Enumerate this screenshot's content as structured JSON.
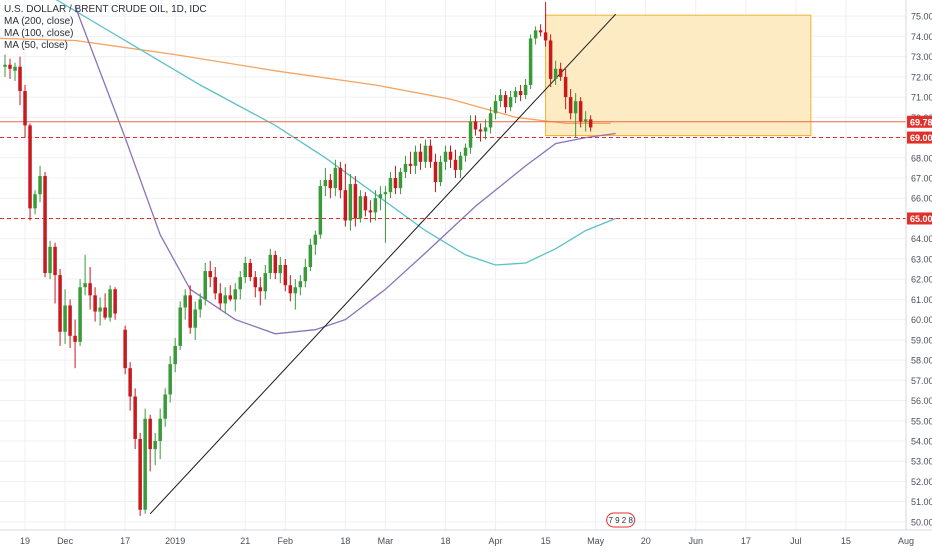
{
  "chart_data": {
    "type": "candlestick",
    "title": "U.S. DOLLAR / BRENT CRUDE OIL, 1D, IDC",
    "legend": [
      "MA (200, close)",
      "MA (100, close)",
      "MA (50, close)"
    ],
    "ylim": [
      49.6,
      75.8
    ],
    "y_ticks": [
      "50.00",
      "51.00",
      "52.00",
      "53.00",
      "54.00",
      "55.00",
      "56.00",
      "57.00",
      "58.00",
      "59.00",
      "60.00",
      "61.00",
      "62.00",
      "63.00",
      "64.00",
      "65.00",
      "66.00",
      "67.00",
      "68.00",
      "69.00",
      "70.00",
      "71.00",
      "72.00",
      "73.00",
      "74.00",
      "75.00"
    ],
    "x_ticks": [
      {
        "label": "19",
        "t": 0
      },
      {
        "label": "Dec",
        "t": 8
      },
      {
        "label": "17",
        "t": 20
      },
      {
        "label": "2019",
        "t": 30
      },
      {
        "label": "21",
        "t": 44
      },
      {
        "label": "Feb",
        "t": 52
      },
      {
        "label": "18",
        "t": 64
      },
      {
        "label": "Mar",
        "t": 72
      },
      {
        "label": "18",
        "t": 84
      },
      {
        "label": "Apr",
        "t": 94
      },
      {
        "label": "15",
        "t": 104
      },
      {
        "label": "May",
        "t": 114
      },
      {
        "label": "20",
        "t": 124
      },
      {
        "label": "Jun",
        "t": 134
      },
      {
        "label": "17",
        "t": 144
      },
      {
        "label": "Jul",
        "t": 154
      },
      {
        "label": "15",
        "t": 164
      },
      {
        "label": "Aug",
        "t": 176
      }
    ],
    "xlim": [
      -5,
      176
    ],
    "price_lines": [
      {
        "label": "69.78",
        "value": 69.78,
        "style": "solid",
        "color": "#e86848"
      },
      {
        "label": "69.00",
        "value": 69.0,
        "style": "dashed",
        "color": "#e0302c"
      },
      {
        "label": "65.00",
        "value": 65.0,
        "style": "dashed",
        "color": "#e0302c"
      }
    ],
    "rectangle": {
      "t1": 104,
      "t2": 157,
      "p1": 69.1,
      "p2": 75.05,
      "fill": "#fde9b8",
      "stroke": "#f0b232"
    },
    "trendline": {
      "t1": 25,
      "p1": 50.4,
      "t2": 118,
      "p2": 75.1,
      "color": "#1a1a1a"
    },
    "ma_200": {
      "color": "#f4a460",
      "points": [
        [
          -5,
          73.9
        ],
        [
          10,
          73.8
        ],
        [
          30,
          73.1
        ],
        [
          50,
          72.3
        ],
        [
          70,
          71.6
        ],
        [
          85,
          70.9
        ],
        [
          98,
          70.0
        ],
        [
          108,
          69.7
        ],
        [
          117,
          69.7
        ]
      ]
    },
    "ma_100": {
      "color": "#5bc0c8",
      "points": [
        [
          5,
          76.0
        ],
        [
          20,
          73.8
        ],
        [
          35,
          71.6
        ],
        [
          50,
          69.6
        ],
        [
          60,
          68.0
        ],
        [
          70,
          66.2
        ],
        [
          80,
          64.4
        ],
        [
          88,
          63.2
        ],
        [
          94,
          62.7
        ],
        [
          100,
          62.8
        ],
        [
          106,
          63.5
        ],
        [
          112,
          64.4
        ],
        [
          118,
          65.0
        ]
      ]
    },
    "ma_50": {
      "color": "#8a73b8",
      "points": [
        [
          10,
          75.5
        ],
        [
          20,
          69.0
        ],
        [
          27,
          64.2
        ],
        [
          33,
          61.5
        ],
        [
          42,
          60.0
        ],
        [
          50,
          59.3
        ],
        [
          58,
          59.5
        ],
        [
          64,
          60.0
        ],
        [
          72,
          61.5
        ],
        [
          80,
          63.3
        ],
        [
          90,
          65.6
        ],
        [
          100,
          67.6
        ],
        [
          106,
          68.7
        ],
        [
          112,
          69.0
        ],
        [
          118,
          69.2
        ]
      ]
    },
    "candles": [
      {
        "t": -4,
        "o": 72.5,
        "h": 73.1,
        "l": 72.0,
        "c": 72.6
      },
      {
        "t": -3,
        "o": 72.6,
        "h": 72.9,
        "l": 71.9,
        "c": 72.4
      },
      {
        "t": -2,
        "o": 72.3,
        "h": 72.7,
        "l": 71.8,
        "c": 72.5
      },
      {
        "t": -1,
        "o": 72.5,
        "h": 73.0,
        "l": 70.6,
        "c": 71.3
      },
      {
        "t": 0,
        "o": 71.3,
        "h": 71.6,
        "l": 69.0,
        "c": 69.6
      },
      {
        "t": 1,
        "o": 69.6,
        "h": 69.7,
        "l": 64.9,
        "c": 65.5
      },
      {
        "t": 2,
        "o": 65.5,
        "h": 66.4,
        "l": 65.2,
        "c": 66.2
      },
      {
        "t": 3,
        "o": 66.2,
        "h": 67.6,
        "l": 65.8,
        "c": 67.1
      },
      {
        "t": 4,
        "o": 67.1,
        "h": 67.3,
        "l": 62.1,
        "c": 62.3
      },
      {
        "t": 5,
        "o": 62.3,
        "h": 63.9,
        "l": 62.0,
        "c": 63.6
      },
      {
        "t": 6,
        "o": 63.6,
        "h": 63.8,
        "l": 60.8,
        "c": 62.2
      },
      {
        "t": 7,
        "o": 62.2,
        "h": 62.5,
        "l": 58.7,
        "c": 59.4
      },
      {
        "t": 8,
        "o": 59.4,
        "h": 61.5,
        "l": 58.8,
        "c": 60.7
      },
      {
        "t": 9,
        "o": 60.7,
        "h": 61.0,
        "l": 58.6,
        "c": 59.2
      },
      {
        "t": 10,
        "o": 59.2,
        "h": 60.0,
        "l": 57.6,
        "c": 58.9
      },
      {
        "t": 11,
        "o": 58.9,
        "h": 62.0,
        "l": 58.7,
        "c": 61.6
      },
      {
        "t": 12,
        "o": 61.6,
        "h": 63.2,
        "l": 61.2,
        "c": 61.8
      },
      {
        "t": 13,
        "o": 61.8,
        "h": 62.6,
        "l": 60.5,
        "c": 61.2
      },
      {
        "t": 14,
        "o": 61.2,
        "h": 61.6,
        "l": 59.9,
        "c": 60.4
      },
      {
        "t": 15,
        "o": 60.4,
        "h": 61.1,
        "l": 59.7,
        "c": 60.6
      },
      {
        "t": 16,
        "o": 60.6,
        "h": 61.3,
        "l": 60.0,
        "c": 60.1
      },
      {
        "t": 17,
        "o": 60.1,
        "h": 61.7,
        "l": 59.9,
        "c": 61.5
      },
      {
        "t": 18,
        "o": 61.5,
        "h": 61.6,
        "l": 60.0,
        "c": 60.3
      },
      {
        "t": 20,
        "o": 59.5,
        "h": 59.7,
        "l": 57.3,
        "c": 57.6
      },
      {
        "t": 21,
        "o": 57.6,
        "h": 57.9,
        "l": 55.5,
        "c": 56.2
      },
      {
        "t": 22,
        "o": 56.2,
        "h": 56.6,
        "l": 53.6,
        "c": 54.1
      },
      {
        "t": 23,
        "o": 54.1,
        "h": 54.4,
        "l": 50.3,
        "c": 50.6
      },
      {
        "t": 24,
        "o": 50.6,
        "h": 55.6,
        "l": 50.4,
        "c": 55.1
      },
      {
        "t": 25,
        "o": 55.1,
        "h": 55.3,
        "l": 52.5,
        "c": 53.6
      },
      {
        "t": 26,
        "o": 53.6,
        "h": 54.4,
        "l": 52.8,
        "c": 54.0
      },
      {
        "t": 27,
        "o": 54.0,
        "h": 55.6,
        "l": 53.1,
        "c": 55.1
      },
      {
        "t": 28,
        "o": 55.1,
        "h": 56.6,
        "l": 54.7,
        "c": 56.3
      },
      {
        "t": 29,
        "o": 56.3,
        "h": 58.2,
        "l": 55.9,
        "c": 57.8
      },
      {
        "t": 30,
        "o": 57.8,
        "h": 59.1,
        "l": 57.4,
        "c": 58.7
      },
      {
        "t": 31,
        "o": 58.7,
        "h": 60.9,
        "l": 58.5,
        "c": 60.6
      },
      {
        "t": 32,
        "o": 60.6,
        "h": 61.5,
        "l": 60.0,
        "c": 61.2
      },
      {
        "t": 33,
        "o": 61.2,
        "h": 61.7,
        "l": 59.3,
        "c": 59.6
      },
      {
        "t": 34,
        "o": 59.6,
        "h": 60.9,
        "l": 59.0,
        "c": 60.5
      },
      {
        "t": 35,
        "o": 60.5,
        "h": 61.3,
        "l": 60.1,
        "c": 61.0
      },
      {
        "t": 36,
        "o": 61.0,
        "h": 62.8,
        "l": 60.7,
        "c": 62.4
      },
      {
        "t": 37,
        "o": 62.4,
        "h": 62.9,
        "l": 61.6,
        "c": 62.1
      },
      {
        "t": 38,
        "o": 62.1,
        "h": 62.6,
        "l": 61.0,
        "c": 61.3
      },
      {
        "t": 39,
        "o": 61.3,
        "h": 61.8,
        "l": 60.5,
        "c": 60.8
      },
      {
        "t": 40,
        "o": 60.8,
        "h": 61.6,
        "l": 60.3,
        "c": 61.2
      },
      {
        "t": 41,
        "o": 61.2,
        "h": 61.7,
        "l": 60.9,
        "c": 61.0
      },
      {
        "t": 42,
        "o": 61.0,
        "h": 61.8,
        "l": 60.4,
        "c": 61.5
      },
      {
        "t": 43,
        "o": 61.5,
        "h": 62.4,
        "l": 61.0,
        "c": 62.1
      },
      {
        "t": 44,
        "o": 62.1,
        "h": 63.1,
        "l": 61.8,
        "c": 62.8
      },
      {
        "t": 45,
        "o": 62.8,
        "h": 63.0,
        "l": 61.9,
        "c": 62.1
      },
      {
        "t": 46,
        "o": 62.1,
        "h": 62.4,
        "l": 61.1,
        "c": 61.6
      },
      {
        "t": 47,
        "o": 61.6,
        "h": 62.1,
        "l": 60.7,
        "c": 61.4
      },
      {
        "t": 48,
        "o": 61.4,
        "h": 62.7,
        "l": 61.0,
        "c": 62.3
      },
      {
        "t": 49,
        "o": 62.3,
        "h": 63.5,
        "l": 62.0,
        "c": 63.2
      },
      {
        "t": 50,
        "o": 63.2,
        "h": 63.4,
        "l": 62.0,
        "c": 62.3
      },
      {
        "t": 51,
        "o": 62.3,
        "h": 63.1,
        "l": 61.8,
        "c": 62.7
      },
      {
        "t": 52,
        "o": 62.7,
        "h": 63.0,
        "l": 61.4,
        "c": 61.7
      },
      {
        "t": 53,
        "o": 61.7,
        "h": 62.2,
        "l": 60.9,
        "c": 61.3
      },
      {
        "t": 54,
        "o": 61.3,
        "h": 62.0,
        "l": 60.5,
        "c": 61.6
      },
      {
        "t": 55,
        "o": 61.6,
        "h": 62.2,
        "l": 61.2,
        "c": 61.9
      },
      {
        "t": 56,
        "o": 61.9,
        "h": 63.0,
        "l": 61.6,
        "c": 62.6
      },
      {
        "t": 57,
        "o": 62.6,
        "h": 64.0,
        "l": 62.4,
        "c": 63.7
      },
      {
        "t": 58,
        "o": 63.7,
        "h": 64.4,
        "l": 63.2,
        "c": 64.2
      },
      {
        "t": 59,
        "o": 64.2,
        "h": 66.9,
        "l": 64.0,
        "c": 66.6
      },
      {
        "t": 60,
        "o": 66.6,
        "h": 67.5,
        "l": 66.1,
        "c": 66.9
      },
      {
        "t": 61,
        "o": 66.9,
        "h": 67.2,
        "l": 66.0,
        "c": 66.5
      },
      {
        "t": 62,
        "o": 66.5,
        "h": 67.9,
        "l": 66.1,
        "c": 67.5
      },
      {
        "t": 63,
        "o": 67.5,
        "h": 67.8,
        "l": 66.0,
        "c": 66.4
      },
      {
        "t": 64,
        "o": 66.4,
        "h": 67.7,
        "l": 64.6,
        "c": 64.9
      },
      {
        "t": 65,
        "o": 64.9,
        "h": 67.2,
        "l": 64.4,
        "c": 66.7
      },
      {
        "t": 66,
        "o": 66.7,
        "h": 67.1,
        "l": 64.6,
        "c": 65.0
      },
      {
        "t": 67,
        "o": 65.0,
        "h": 66.4,
        "l": 64.8,
        "c": 66.1
      },
      {
        "t": 68,
        "o": 66.1,
        "h": 66.3,
        "l": 65.1,
        "c": 65.4
      },
      {
        "t": 69,
        "o": 65.4,
        "h": 65.9,
        "l": 64.8,
        "c": 65.3
      },
      {
        "t": 70,
        "o": 65.3,
        "h": 66.4,
        "l": 64.9,
        "c": 66.0
      },
      {
        "t": 71,
        "o": 66.0,
        "h": 66.6,
        "l": 65.4,
        "c": 66.2
      },
      {
        "t": 72,
        "o": 66.2,
        "h": 66.6,
        "l": 63.8,
        "c": 66.3
      },
      {
        "t": 73,
        "o": 66.3,
        "h": 67.3,
        "l": 66.0,
        "c": 67.0
      },
      {
        "t": 74,
        "o": 67.0,
        "h": 67.6,
        "l": 66.2,
        "c": 66.5
      },
      {
        "t": 75,
        "o": 66.5,
        "h": 67.5,
        "l": 66.2,
        "c": 67.3
      },
      {
        "t": 76,
        "o": 67.3,
        "h": 68.1,
        "l": 67.0,
        "c": 67.7
      },
      {
        "t": 77,
        "o": 67.7,
        "h": 68.3,
        "l": 67.2,
        "c": 67.6
      },
      {
        "t": 78,
        "o": 67.6,
        "h": 68.6,
        "l": 67.2,
        "c": 68.3
      },
      {
        "t": 79,
        "o": 68.3,
        "h": 68.7,
        "l": 67.4,
        "c": 67.8
      },
      {
        "t": 80,
        "o": 67.8,
        "h": 68.9,
        "l": 67.5,
        "c": 68.6
      },
      {
        "t": 81,
        "o": 68.6,
        "h": 68.9,
        "l": 67.5,
        "c": 67.8
      },
      {
        "t": 82,
        "o": 67.8,
        "h": 68.2,
        "l": 66.3,
        "c": 66.8
      },
      {
        "t": 83,
        "o": 66.8,
        "h": 68.1,
        "l": 66.6,
        "c": 67.8
      },
      {
        "t": 84,
        "o": 67.8,
        "h": 68.6,
        "l": 67.4,
        "c": 68.3
      },
      {
        "t": 85,
        "o": 68.3,
        "h": 68.6,
        "l": 67.5,
        "c": 67.9
      },
      {
        "t": 86,
        "o": 67.9,
        "h": 68.4,
        "l": 67.0,
        "c": 67.4
      },
      {
        "t": 87,
        "o": 67.4,
        "h": 68.3,
        "l": 67.0,
        "c": 68.1
      },
      {
        "t": 88,
        "o": 68.1,
        "h": 68.7,
        "l": 67.8,
        "c": 68.5
      },
      {
        "t": 89,
        "o": 68.5,
        "h": 70.1,
        "l": 68.2,
        "c": 69.8
      },
      {
        "t": 90,
        "o": 69.8,
        "h": 70.1,
        "l": 69.1,
        "c": 69.4
      },
      {
        "t": 91,
        "o": 69.4,
        "h": 69.7,
        "l": 68.8,
        "c": 69.3
      },
      {
        "t": 92,
        "o": 69.3,
        "h": 69.9,
        "l": 68.9,
        "c": 69.5
      },
      {
        "t": 93,
        "o": 69.5,
        "h": 70.5,
        "l": 69.2,
        "c": 70.2
      },
      {
        "t": 94,
        "o": 70.2,
        "h": 71.1,
        "l": 69.9,
        "c": 70.8
      },
      {
        "t": 95,
        "o": 70.8,
        "h": 71.4,
        "l": 70.5,
        "c": 71.1
      },
      {
        "t": 96,
        "o": 71.1,
        "h": 71.3,
        "l": 70.2,
        "c": 70.5
      },
      {
        "t": 97,
        "o": 70.5,
        "h": 71.3,
        "l": 70.3,
        "c": 71.0
      },
      {
        "t": 98,
        "o": 71.0,
        "h": 71.5,
        "l": 70.7,
        "c": 71.3
      },
      {
        "t": 99,
        "o": 71.3,
        "h": 71.6,
        "l": 70.8,
        "c": 71.1
      },
      {
        "t": 100,
        "o": 71.1,
        "h": 71.9,
        "l": 70.9,
        "c": 71.6
      },
      {
        "t": 101,
        "o": 71.6,
        "h": 74.1,
        "l": 71.4,
        "c": 73.9
      },
      {
        "t": 102,
        "o": 73.9,
        "h": 74.5,
        "l": 73.6,
        "c": 74.3
      },
      {
        "t": 103,
        "o": 74.3,
        "h": 74.6,
        "l": 74.0,
        "c": 74.2
      },
      {
        "t": 104,
        "o": 74.2,
        "h": 75.7,
        "l": 73.5,
        "c": 73.8
      },
      {
        "t": 105,
        "o": 73.8,
        "h": 74.1,
        "l": 71.5,
        "c": 71.9
      },
      {
        "t": 106,
        "o": 71.9,
        "h": 72.8,
        "l": 71.6,
        "c": 72.4
      },
      {
        "t": 107,
        "o": 72.4,
        "h": 72.7,
        "l": 71.8,
        "c": 72.0
      },
      {
        "t": 108,
        "o": 72.0,
        "h": 72.4,
        "l": 70.4,
        "c": 71.0
      },
      {
        "t": 109,
        "o": 71.0,
        "h": 71.4,
        "l": 69.9,
        "c": 70.2
      },
      {
        "t": 110,
        "o": 70.2,
        "h": 71.2,
        "l": 69.0,
        "c": 70.8
      },
      {
        "t": 111,
        "o": 70.8,
        "h": 71.0,
        "l": 69.5,
        "c": 69.8
      },
      {
        "t": 112,
        "o": 69.8,
        "h": 70.3,
        "l": 69.3,
        "c": 69.9
      },
      {
        "t": 113,
        "o": 69.9,
        "h": 70.1,
        "l": 69.3,
        "c": 69.5
      }
    ],
    "colors": {
      "up": "#3a9a3a",
      "down": "#c8191d",
      "grid": "#eef0f3",
      "axis_text": "#4a4e59",
      "price_tag_bg": "#e0302c"
    },
    "footer_badge": "7 9 2 8"
  }
}
